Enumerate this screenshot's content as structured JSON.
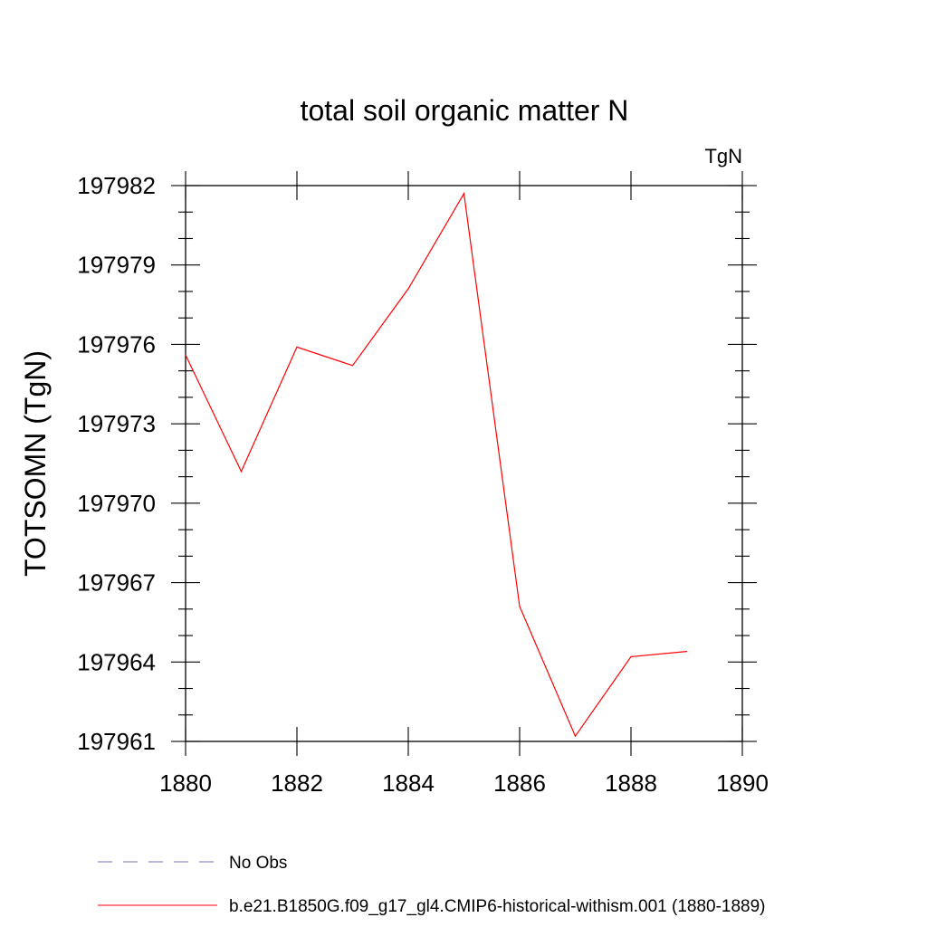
{
  "chart_data": {
    "type": "line",
    "title": "total soil organic matter N",
    "units_label": "TgN",
    "ylabel": "TOTSOMN  (TgN)",
    "xlabel": "",
    "xlim": [
      1880,
      1890
    ],
    "ylim": [
      197961,
      197982
    ],
    "x_ticks": [
      1880,
      1882,
      1884,
      1886,
      1888,
      1890
    ],
    "y_ticks": [
      197961,
      197964,
      197967,
      197970,
      197973,
      197976,
      197979,
      197982
    ],
    "grid": false,
    "legend_position": "bottom",
    "series": [
      {
        "name": "b.e21.B1850G.f09_g17_gl4.CMIP6-historical-withism.001 (1880-1889)",
        "color": "#ff0000",
        "style": "solid",
        "x": [
          1880,
          1881,
          1882,
          1883,
          1884,
          1885,
          1886,
          1887,
          1888,
          1889
        ],
        "y": [
          197975.6,
          197971.2,
          197975.9,
          197975.2,
          197978.1,
          197981.7,
          197966.1,
          197961.2,
          197964.2,
          197964.4
        ]
      }
    ],
    "legend": [
      {
        "label": "No Obs",
        "color": "#7a6fb0",
        "style": "dashed"
      },
      {
        "label": "b.e21.B1850G.f09_g17_gl4.CMIP6-historical-withism.001 (1880-1889)",
        "color": "#ff0000",
        "style": "solid"
      }
    ]
  }
}
